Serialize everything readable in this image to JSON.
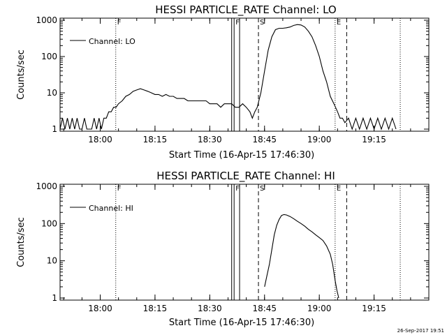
{
  "footer": {
    "date_stamp": "26-Sep-2017 19:51"
  },
  "chart_data": [
    {
      "type": "line",
      "title": "HESSI PARTICLE_RATE Channel: LO",
      "xlabel": "Start Time (16-Apr-15 17:46:30)",
      "ylabel": "Counts/sec",
      "yscale": "log",
      "xlim": [
        "17:49:00",
        "19:30:00"
      ],
      "ylim": [
        1,
        1000
      ],
      "x_ticks": [
        "18:00",
        "18:15",
        "18:30",
        "18:45",
        "19:00",
        "19:15"
      ],
      "y_ticks": [
        "1",
        "10",
        "100",
        "1000"
      ],
      "legend": {
        "position": "top-left",
        "entries": [
          "Channel: LO"
        ]
      },
      "markers": [
        {
          "time": "18:04:15",
          "label": "F",
          "style": "dotted"
        },
        {
          "time": "18:36:00",
          "label": "",
          "style": "solid"
        },
        {
          "time": "18:36:40",
          "label": "F",
          "style": "solid"
        },
        {
          "time": "18:38:10",
          "label": "",
          "style": "solid"
        },
        {
          "time": "18:43:20",
          "label": "S",
          "style": "dashed"
        },
        {
          "time": "19:04:20",
          "label": "E",
          "style": "dotted"
        },
        {
          "time": "19:07:30",
          "label": "",
          "style": "dashed"
        },
        {
          "time": "19:22:10",
          "label": "",
          "style": "dotted"
        }
      ],
      "series": [
        {
          "name": "Channel: LO",
          "x": [
            "17:49:00",
            "17:49:40",
            "17:50:20",
            "17:51:00",
            "17:51:40",
            "17:52:20",
            "17:53:00",
            "17:53:40",
            "17:54:20",
            "17:55:00",
            "17:55:40",
            "17:56:20",
            "17:57:00",
            "17:57:40",
            "17:58:20",
            "17:59:00",
            "17:59:40",
            "18:00:20",
            "18:01:00",
            "18:01:40",
            "18:02:20",
            "18:03:00",
            "18:03:40",
            "18:04:20",
            "18:05:00",
            "18:06:00",
            "18:07:00",
            "18:08:00",
            "18:09:00",
            "18:10:00",
            "18:11:00",
            "18:12:00",
            "18:13:00",
            "18:14:00",
            "18:15:00",
            "18:16:00",
            "18:17:00",
            "18:18:00",
            "18:19:00",
            "18:20:00",
            "18:21:00",
            "18:22:00",
            "18:23:00",
            "18:24:00",
            "18:25:00",
            "18:26:00",
            "18:27:00",
            "18:28:00",
            "18:29:00",
            "18:30:00",
            "18:31:00",
            "18:32:00",
            "18:33:00",
            "18:34:00",
            "18:35:00",
            "18:36:00",
            "18:37:00",
            "18:38:00",
            "18:39:00",
            "18:40:00",
            "18:41:00",
            "18:41:40",
            "18:42:20",
            "18:43:00",
            "18:44:00",
            "18:45:00",
            "18:46:00",
            "18:47:00",
            "18:48:00",
            "18:49:00",
            "18:50:00",
            "18:51:00",
            "18:52:00",
            "18:53:00",
            "18:54:00",
            "18:55:00",
            "18:56:00",
            "18:57:00",
            "18:58:00",
            "18:59:00",
            "19:00:00",
            "19:01:00",
            "19:02:00",
            "19:03:00",
            "19:04:00",
            "19:05:00",
            "19:05:40",
            "19:06:20",
            "19:07:00",
            "19:08:00",
            "19:09:00",
            "19:10:00",
            "19:11:00",
            "19:12:00",
            "19:13:00",
            "19:14:00",
            "19:15:00",
            "19:16:00",
            "19:17:00",
            "19:18:00",
            "19:19:00",
            "19:20:00",
            "19:21:00"
          ],
          "y": [
            1,
            2,
            1,
            2,
            1,
            2,
            1,
            2,
            1,
            1,
            2,
            1,
            1,
            1,
            2,
            1,
            2,
            1,
            2,
            2,
            3,
            3,
            4,
            4,
            5,
            6,
            8,
            9,
            11,
            12,
            13,
            12,
            11,
            10,
            9,
            9,
            8,
            9,
            8,
            8,
            7,
            7,
            7,
            6,
            6,
            6,
            6,
            6,
            6,
            5,
            5,
            5,
            4,
            5,
            5,
            5,
            4,
            4,
            5,
            4,
            3,
            2,
            3,
            4,
            10,
            40,
            150,
            350,
            550,
            600,
            600,
            620,
            650,
            720,
            760,
            740,
            650,
            500,
            350,
            200,
            100,
            40,
            20,
            8,
            5,
            3,
            2,
            2,
            1.5,
            2,
            1,
            2,
            1,
            2,
            1,
            2,
            1,
            2,
            1,
            2,
            1,
            2,
            1
          ]
        }
      ]
    },
    {
      "type": "line",
      "title": "HESSI PARTICLE_RATE Channel: HI",
      "xlabel": "Start Time (16-Apr-15 17:46:30)",
      "ylabel": "Counts/sec",
      "yscale": "log",
      "xlim": [
        "17:49:00",
        "19:30:00"
      ],
      "ylim": [
        1,
        1000
      ],
      "x_ticks": [
        "18:00",
        "18:15",
        "18:30",
        "18:45",
        "19:00",
        "19:15"
      ],
      "y_ticks": [
        "1",
        "10",
        "100",
        "1000"
      ],
      "legend": {
        "position": "top-left",
        "entries": [
          "Channel: HI"
        ]
      },
      "markers": [
        {
          "time": "18:04:15",
          "label": "F",
          "style": "dotted"
        },
        {
          "time": "18:36:00",
          "label": "",
          "style": "solid"
        },
        {
          "time": "18:36:40",
          "label": "F",
          "style": "solid"
        },
        {
          "time": "18:38:10",
          "label": "",
          "style": "solid"
        },
        {
          "time": "18:43:20",
          "label": "S",
          "style": "dashed"
        },
        {
          "time": "19:04:20",
          "label": "E",
          "style": "dotted"
        },
        {
          "time": "19:07:30",
          "label": "",
          "style": "dashed"
        },
        {
          "time": "19:22:10",
          "label": "",
          "style": "dotted"
        }
      ],
      "series": [
        {
          "name": "Channel: HI",
          "x": [
            "18:45:00",
            "18:45:40",
            "18:46:20",
            "18:47:00",
            "18:47:40",
            "18:48:20",
            "18:49:00",
            "18:49:40",
            "18:50:20",
            "18:51:00",
            "18:52:00",
            "18:53:00",
            "18:54:00",
            "18:55:00",
            "18:56:00",
            "18:57:00",
            "18:58:00",
            "18:59:00",
            "19:00:00",
            "19:01:00",
            "19:02:00",
            "19:03:00",
            "19:03:40",
            "19:04:20",
            "19:04:50",
            "19:05:20"
          ],
          "y": [
            2,
            4,
            8,
            20,
            50,
            90,
            130,
            165,
            175,
            170,
            155,
            135,
            115,
            100,
            85,
            70,
            60,
            50,
            42,
            35,
            25,
            15,
            8,
            3,
            1.6,
            1
          ]
        }
      ]
    }
  ]
}
